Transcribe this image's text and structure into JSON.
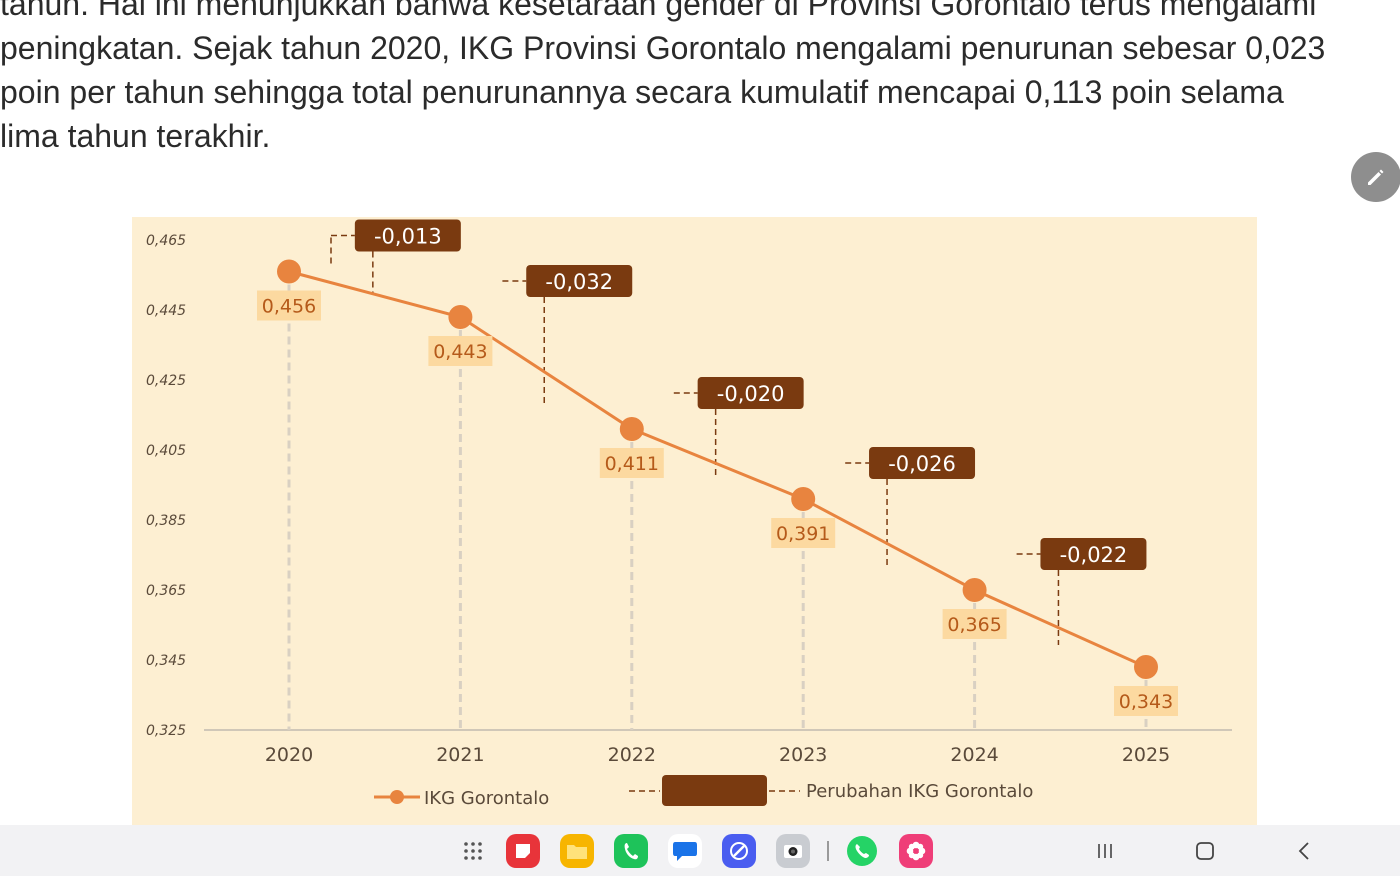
{
  "article": {
    "lines": [
      "tahun. Hal ini menunjukkan bahwa kesetaraan gender di Provinsi Gorontalo terus mengalami",
      "peningkatan. Sejak tahun 2020, IKG Provinsi Gorontalo mengalami penurunan sebesar 0,023",
      "poin per tahun sehingga total penurunannya secara kumulatif mencapai 0,113 poin selama",
      "lima tahun terakhir."
    ]
  },
  "edit_button": {
    "icon": "pencil-icon"
  },
  "chart_data": {
    "type": "line",
    "title": "",
    "xlabel": "",
    "ylabel": "",
    "categories": [
      "2020",
      "2021",
      "2022",
      "2023",
      "2024",
      "2025"
    ],
    "series": [
      {
        "name": "IKG Gorontalo",
        "values": [
          0.456,
          0.443,
          0.411,
          0.391,
          0.365,
          0.343
        ]
      }
    ],
    "data_labels": [
      "0,456",
      "0,443",
      "0,411",
      "0,391",
      "0,365",
      "0,343"
    ],
    "changes": [
      "-0,013",
      "-0,032",
      "-0,020",
      "-0,026",
      "-0,022"
    ],
    "changes_values": [
      -0.013,
      -0.032,
      -0.02,
      -0.026,
      -0.022
    ],
    "ylim": [
      0.325,
      0.465
    ],
    "y_ticks": [
      0.465,
      0.445,
      0.425,
      0.405,
      0.385,
      0.365,
      0.345,
      0.325
    ],
    "y_tick_labels": [
      "0,465",
      "0,445",
      "0,425",
      "0,405",
      "0,385",
      "0,365",
      "0,345",
      "0,325"
    ],
    "legend": [
      {
        "label": "IKG Gorontalo",
        "style": "line-marker"
      },
      {
        "label": "Perubahan IKG Gorontalo",
        "style": "dashed-box"
      }
    ],
    "legend_placement": "bottom",
    "colors": {
      "line": "#e8843f",
      "background": "#fdefd2",
      "value_label_bg": "#fcd9a0",
      "value_label_text": "#b55a1a",
      "change_box": "#7a3a10",
      "change_text": "#ffffff",
      "connector": "#7a3a10",
      "dropline": "#d9d0c2",
      "axis": "#d0c7b8",
      "tick_text": "#5a4a3a"
    }
  },
  "navbar": {
    "apps": [
      {
        "name": "app-drawer-icon",
        "color": "#555555"
      },
      {
        "name": "notes-app-icon",
        "color": "#e8343a"
      },
      {
        "name": "files-app-icon",
        "color": "#f7b500"
      },
      {
        "name": "phone-app-icon",
        "color": "#1ec35a"
      },
      {
        "name": "messages-app-icon",
        "color": "#1a73e8"
      },
      {
        "name": "internet-app-icon",
        "color": "#4a5df0"
      },
      {
        "name": "camera-app-icon",
        "color": "#9aa0a6"
      },
      {
        "name": "whatsapp-app-icon",
        "color": "#25d366"
      },
      {
        "name": "gallery-app-icon",
        "color": "#e8336b"
      }
    ],
    "buttons": [
      "recent-apps-icon",
      "home-icon",
      "back-icon"
    ]
  }
}
